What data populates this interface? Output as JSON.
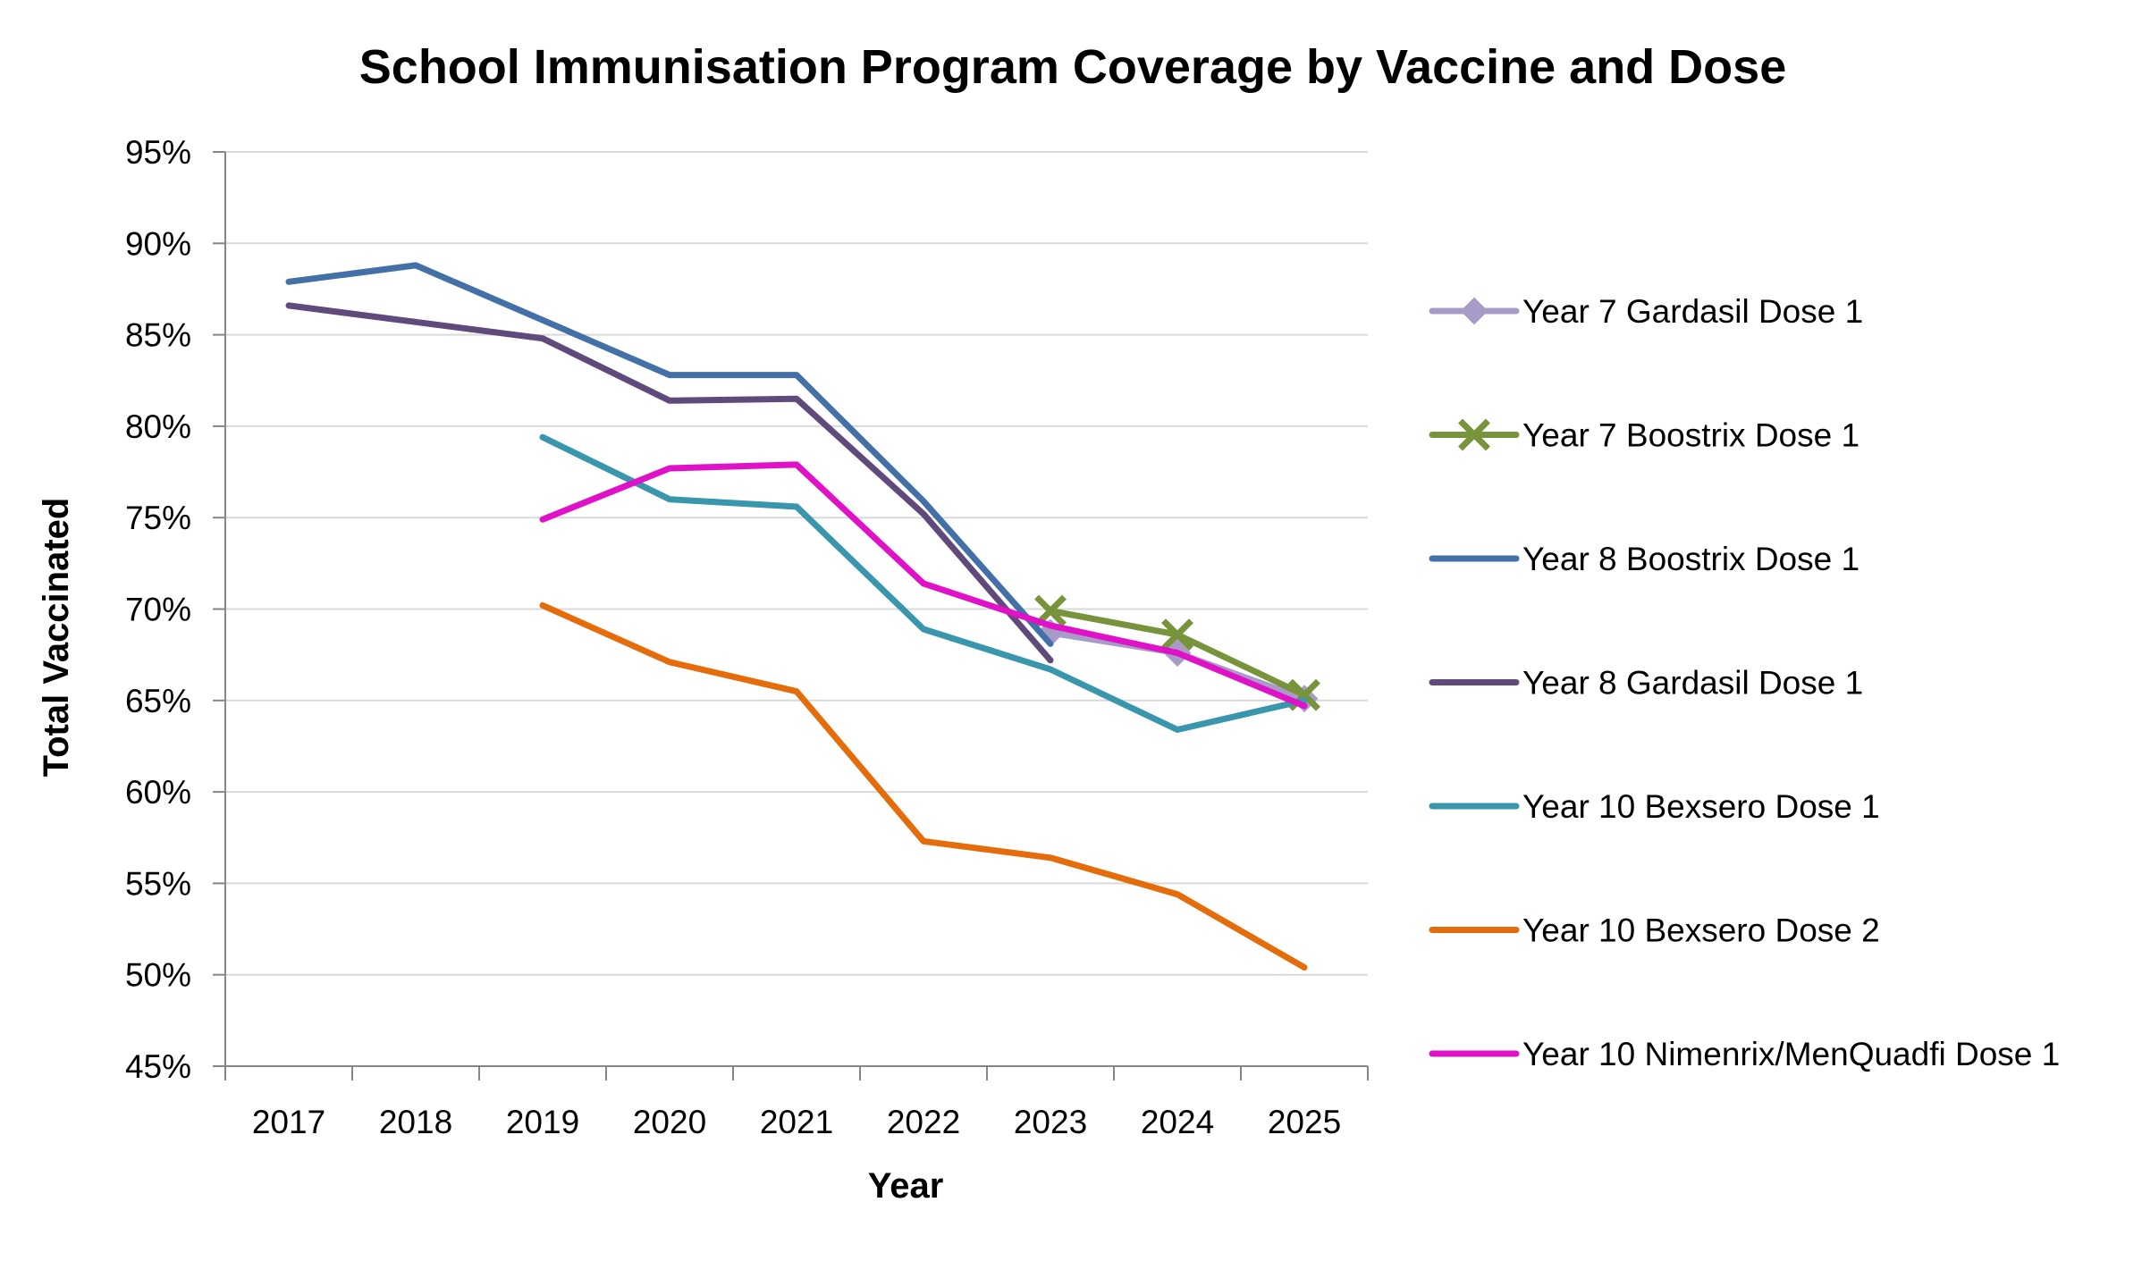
{
  "chart_data": {
    "type": "line",
    "title": "School Immunisation Program Coverage by Vaccine and Dose",
    "xlabel": "Year",
    "ylabel": "Total Vaccinated",
    "categories": [
      "2017",
      "2018",
      "2019",
      "2020",
      "2021",
      "2022",
      "2023",
      "2024",
      "2025"
    ],
    "y_ticks": [
      "45%",
      "50%",
      "55%",
      "60%",
      "65%",
      "70%",
      "75%",
      "80%",
      "85%",
      "90%",
      "95%"
    ],
    "ylim": [
      45,
      95
    ],
    "y_unit": "%",
    "grid": "horizontal",
    "legend_position": "right",
    "series": [
      {
        "name": "Year 7 Gardasil Dose 1",
        "color": "#a99bc7",
        "marker": "diamond",
        "values": [
          null,
          null,
          null,
          null,
          null,
          null,
          68.7,
          67.6,
          65.1
        ]
      },
      {
        "name": "Year 7 Boostrix Dose 1",
        "color": "#77933c",
        "marker": "x",
        "values": [
          null,
          null,
          null,
          null,
          null,
          null,
          69.9,
          68.6,
          65.3
        ]
      },
      {
        "name": "Year 8 Boostrix Dose 1",
        "color": "#4470a8",
        "marker": "none",
        "values": [
          87.9,
          88.8,
          85.8,
          82.8,
          82.8,
          75.9,
          68.1,
          null,
          null
        ]
      },
      {
        "name": "Year 8 Gardasil Dose 1",
        "color": "#604a7b",
        "marker": "none",
        "values": [
          86.6,
          85.7,
          84.8,
          81.4,
          81.5,
          75.2,
          67.2,
          null,
          null
        ]
      },
      {
        "name": "Year 10 Bexsero Dose 1",
        "color": "#3a96ad",
        "marker": "none",
        "values": [
          null,
          null,
          79.4,
          76.0,
          75.6,
          68.9,
          66.7,
          63.4,
          65.0
        ]
      },
      {
        "name": "Year 10 Bexsero Dose 2",
        "color": "#e46c0a",
        "marker": "none",
        "values": [
          null,
          null,
          70.2,
          67.1,
          65.5,
          57.3,
          56.4,
          54.4,
          50.4
        ]
      },
      {
        "name": "Year 10 Nimenrix/MenQuadfi Dose 1",
        "color": "#e012c7",
        "marker": "none",
        "values": [
          null,
          null,
          74.9,
          77.7,
          77.9,
          71.4,
          69.1,
          67.6,
          64.7
        ]
      }
    ]
  }
}
